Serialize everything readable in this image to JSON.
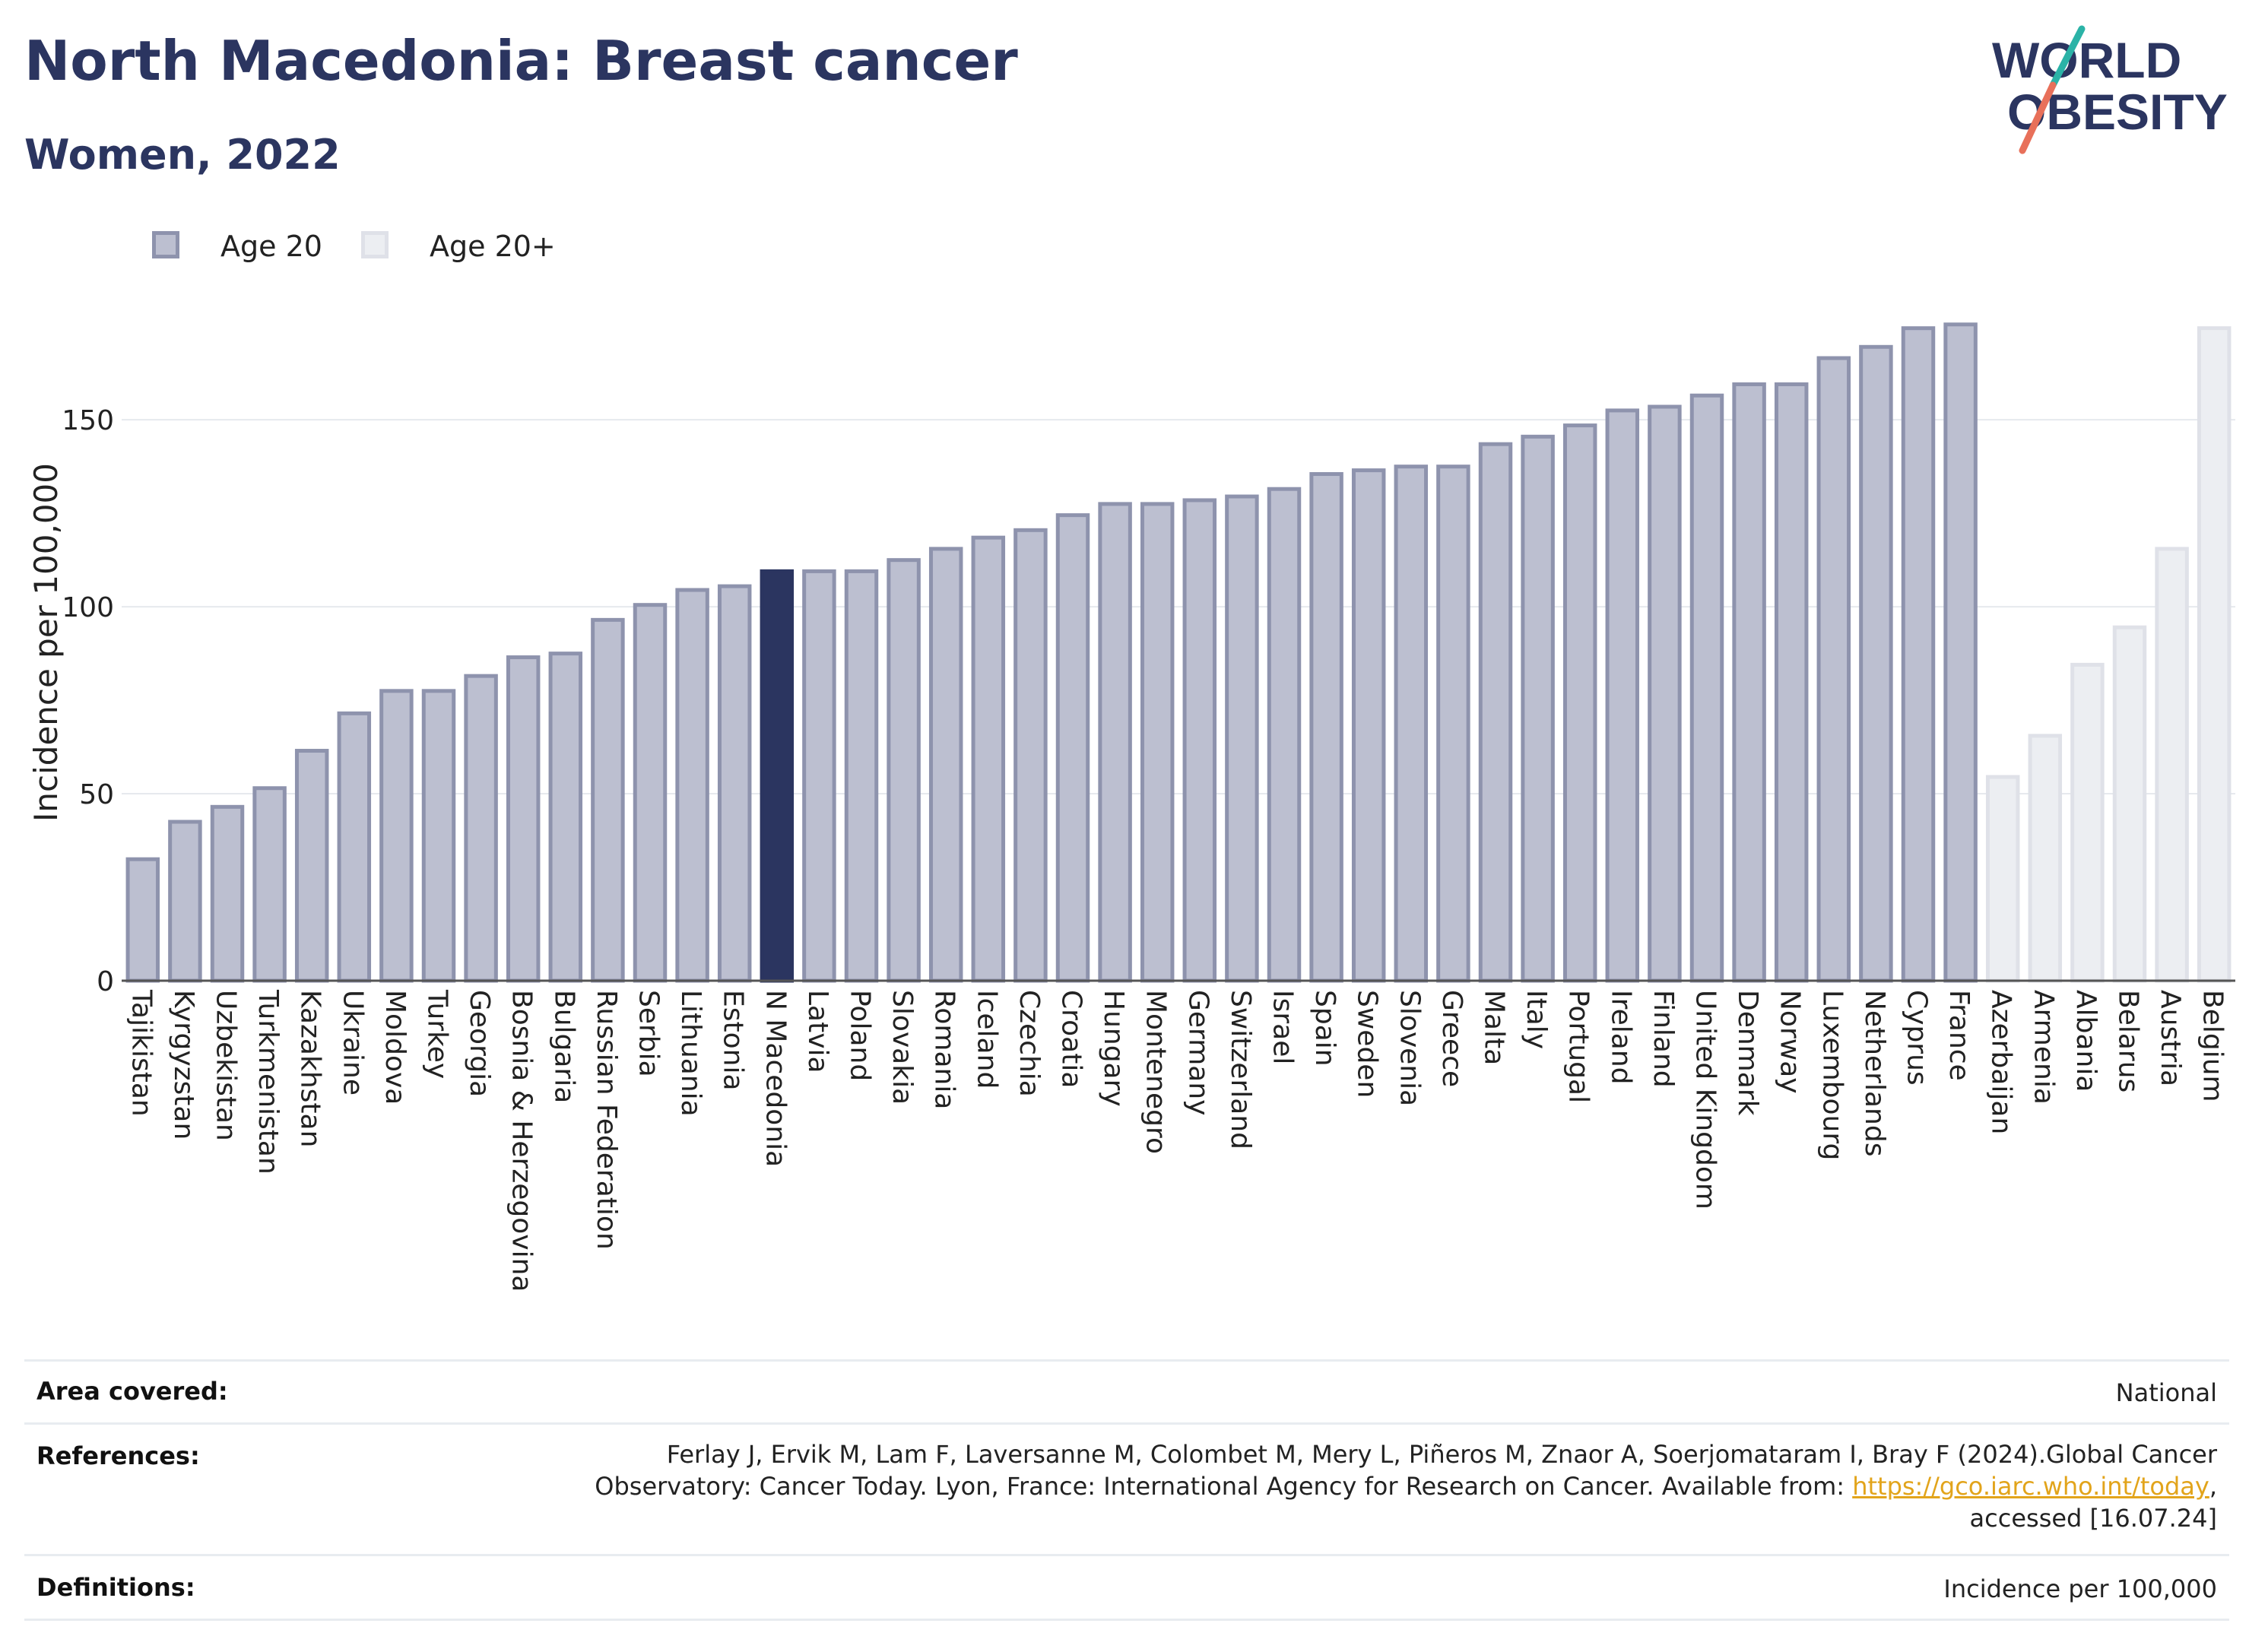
{
  "header": {
    "title": "North Macedonia: Breast cancer",
    "subtitle": "Women, 2022"
  },
  "logo": {
    "line1": "WORLD",
    "line2": "OBESITY",
    "color": "#2b3560",
    "accent_teal": "#2bb3a7",
    "accent_coral": "#e8705a"
  },
  "legend": {
    "items": [
      {
        "label": "Age 20",
        "fill": "#bcbfd0",
        "stroke": "#8e93ad"
      },
      {
        "label": "Age 20+",
        "fill": "#eceef2",
        "stroke": "#dfe1e8"
      }
    ]
  },
  "chart_data": {
    "type": "bar",
    "ylabel": "Incidence per 100,000",
    "ylim": [
      0,
      185
    ],
    "yticks": [
      0,
      50,
      100,
      150
    ],
    "grid": true,
    "legend_position": "top-left",
    "highlight_category": "N Macedonia",
    "highlight_color": "#2b3560",
    "categories": [
      "Tajikistan",
      "Kyrgyzstan",
      "Uzbekistan",
      "Turkmenistan",
      "Kazakhstan",
      "Ukraine",
      "Moldova",
      "Turkey",
      "Georgia",
      "Bosnia & Herzegovina",
      "Bulgaria",
      "Russian Federation",
      "Serbia",
      "Lithuania",
      "Estonia",
      "N Macedonia",
      "Latvia",
      "Poland",
      "Slovakia",
      "Romania",
      "Iceland",
      "Czechia",
      "Croatia",
      "Hungary",
      "Montenegro",
      "Germany",
      "Switzerland",
      "Israel",
      "Spain",
      "Sweden",
      "Slovenia",
      "Greece",
      "Malta",
      "Italy",
      "Portugal",
      "Ireland",
      "Finland",
      "United Kingdom",
      "Denmark",
      "Norway",
      "Luxembourg",
      "Netherlands",
      "Cyprus",
      "France",
      "Azerbaijan",
      "Armenia",
      "Albania",
      "Belarus",
      "Austria",
      "Belgium"
    ],
    "values": [
      33,
      43,
      47,
      52,
      62,
      72,
      78,
      78,
      82,
      87,
      88,
      97,
      101,
      105,
      106,
      110,
      110,
      110,
      113,
      116,
      119,
      121,
      125,
      128,
      128,
      129,
      130,
      132,
      136,
      137,
      138,
      138,
      144,
      146,
      149,
      153,
      154,
      157,
      160,
      160,
      167,
      170,
      175,
      176,
      55,
      66,
      85,
      95,
      116,
      175
    ],
    "series_type": [
      "Age 20",
      "Age 20",
      "Age 20",
      "Age 20",
      "Age 20",
      "Age 20",
      "Age 20",
      "Age 20",
      "Age 20",
      "Age 20",
      "Age 20",
      "Age 20",
      "Age 20",
      "Age 20",
      "Age 20",
      "Age 20",
      "Age 20",
      "Age 20",
      "Age 20",
      "Age 20",
      "Age 20",
      "Age 20",
      "Age 20",
      "Age 20",
      "Age 20",
      "Age 20",
      "Age 20",
      "Age 20",
      "Age 20",
      "Age 20",
      "Age 20",
      "Age 20",
      "Age 20",
      "Age 20",
      "Age 20",
      "Age 20",
      "Age 20",
      "Age 20",
      "Age 20",
      "Age 20",
      "Age 20",
      "Age 20",
      "Age 20",
      "Age 20",
      "Age 20+",
      "Age 20+",
      "Age 20+",
      "Age 20+",
      "Age 20+",
      "Age 20+"
    ]
  },
  "info": {
    "area_label": "Area covered:",
    "area_value": "National",
    "ref_label": "References:",
    "ref_line1": "Ferlay J, Ervik M, Lam F, Laversanne M, Colombet M, Mery L, Piñeros M, Znaor A, Soerjomataram I, Bray F (2024).Global Cancer",
    "ref_line2_pre": "Observatory: Cancer Today. Lyon, France: International Agency for Research on Cancer. Available from: ",
    "ref_link": "https://gco.iarc.who.int/today",
    "ref_line2_post": ",",
    "ref_line3": "accessed [16.07.24]",
    "def_label": "Definitions:",
    "def_value": "Incidence per 100,000"
  }
}
